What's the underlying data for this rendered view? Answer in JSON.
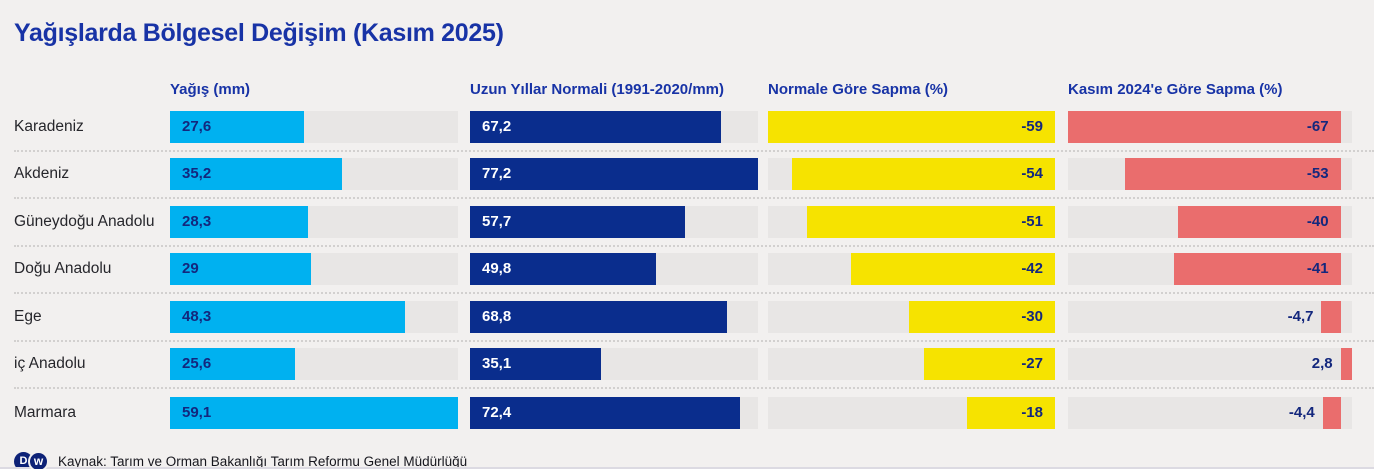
{
  "header": {
    "title": "Yağışlarda Bölgesel Değişim (Kasım 2025)"
  },
  "chart_data": {
    "type": "bar",
    "orientation": "horizontal",
    "title": "Yağışlarda Bölgesel Değişim (Kasım 2025)",
    "grid": false,
    "legend_position": "column-headers",
    "categories": [
      "Karadeniz",
      "Akdeniz",
      "Güneydoğu Anadolu",
      "Doğu Anadolu",
      "Ege",
      "iç Anadolu",
      "Marmara"
    ],
    "series": [
      {
        "name": "Yağış (mm)",
        "color": "#00b1f0",
        "label_color": "#13277d",
        "anchor": "left",
        "axis_max": 59.1,
        "values": [
          27.6,
          35.2,
          28.3,
          29,
          48.3,
          25.6,
          59.1
        ],
        "labels": [
          "27,6",
          "35,2",
          "28,3",
          "29",
          "48,3",
          "25,6",
          "59,1"
        ]
      },
      {
        "name": "Uzun Yıllar Normali (1991-2020/mm)",
        "color": "#0a2d8d",
        "label_color": "#ffffff",
        "anchor": "left",
        "axis_max": 77.2,
        "values": [
          67.2,
          77.2,
          57.7,
          49.8,
          68.8,
          35.1,
          72.4
        ],
        "labels": [
          "67,2",
          "77,2",
          "57,7",
          "49,8",
          "68,8",
          "35,1",
          "72,4"
        ]
      },
      {
        "name": "Normale Göre Sapma (%)",
        "color": "#f6e300",
        "label_color": "#13277d",
        "anchor": "right",
        "axis_max": 59,
        "values": [
          -59,
          -54,
          -51,
          -42,
          -30,
          -27,
          -18
        ],
        "labels": [
          "-59",
          "-54",
          "-51",
          "-42",
          "-30",
          "-27",
          "-18"
        ]
      },
      {
        "name": "Kasım 2024'e Göre Sapma (%)",
        "color": "#ea6d6d",
        "label_color": "#13277d",
        "anchor": "zero",
        "domain_min": -67,
        "domain_max": 2.8,
        "values": [
          -67,
          -53,
          -40,
          -41,
          -4.7,
          2.8,
          -4.4
        ],
        "labels": [
          "-67",
          "-53",
          "-40",
          "-41",
          "-4,7",
          "2,8",
          "-4,4"
        ]
      }
    ]
  },
  "footer": {
    "logo_d": "D",
    "logo_w": "w",
    "source": "Kaynak: Tarım ve Orman Bakanlığı Tarım Reformu Genel Müdürlüğü"
  },
  "colors": {
    "background": "#f2f0ef",
    "track": "#e8e6e5",
    "separator": "#d2d0cf",
    "title": "#1833a6",
    "header_text": "#1833a6",
    "region_text": "#26262b"
  }
}
